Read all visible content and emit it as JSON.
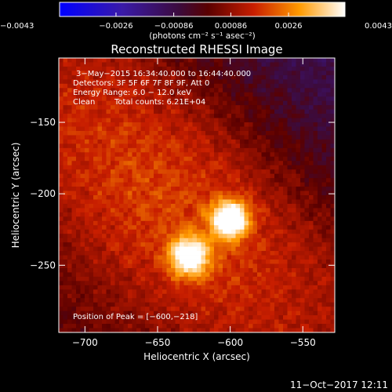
{
  "chart_data": {
    "type": "heatmap",
    "title": "Reconstructed RHESSI Image",
    "xlabel": "Heliocentric X (arcsec)",
    "ylabel": "Heliocentric Y (arcsec)",
    "xlim": [
      -718,
      -528
    ],
    "ylim": [
      -297,
      -105
    ],
    "x_ticks": [
      -700,
      -650,
      -600,
      -550
    ],
    "y_ticks": [
      -150,
      -200,
      -250
    ],
    "x_tick_labels": [
      "−700",
      "−650",
      "−600",
      "−550"
    ],
    "y_tick_labels": [
      "−150",
      "−200",
      "−250"
    ],
    "colorbar": {
      "range": [
        -0.0043,
        0.0043
      ],
      "ticks": [
        -0.0043,
        -0.0026,
        -0.00086,
        0.00086,
        0.0026,
        0.0043
      ],
      "tick_labels": [
        "−0.0043",
        "−0.0026",
        "−0.00086",
        "0.00086",
        "0.0026",
        "0.0043"
      ],
      "unit_label": "(photons cm⁻² s⁻¹ asec⁻²)",
      "colormap": "blue-purple-red-yellow-white"
    },
    "sources": [
      {
        "x": -600,
        "y": -218,
        "peak": 0.0043
      },
      {
        "x": -628,
        "y": -244,
        "peak": 0.0037
      }
    ],
    "annotations": {
      "time_range": "3−May−2015 16:34:40.000 to 16:44:40.000",
      "detectors": "Detectors: 3F 5F 6F 7F 8F 9F, Att 0",
      "energy_range": "Energy Range: 6.0 − 12.0 keV",
      "clean_label": "Clean",
      "total_counts": "Total counts: 6.21E+04",
      "peak_position": "Position of Peak = [−600,−218]"
    },
    "grid": false
  },
  "footer": {
    "date_stamp": "11−Oct−2017 12:11"
  }
}
